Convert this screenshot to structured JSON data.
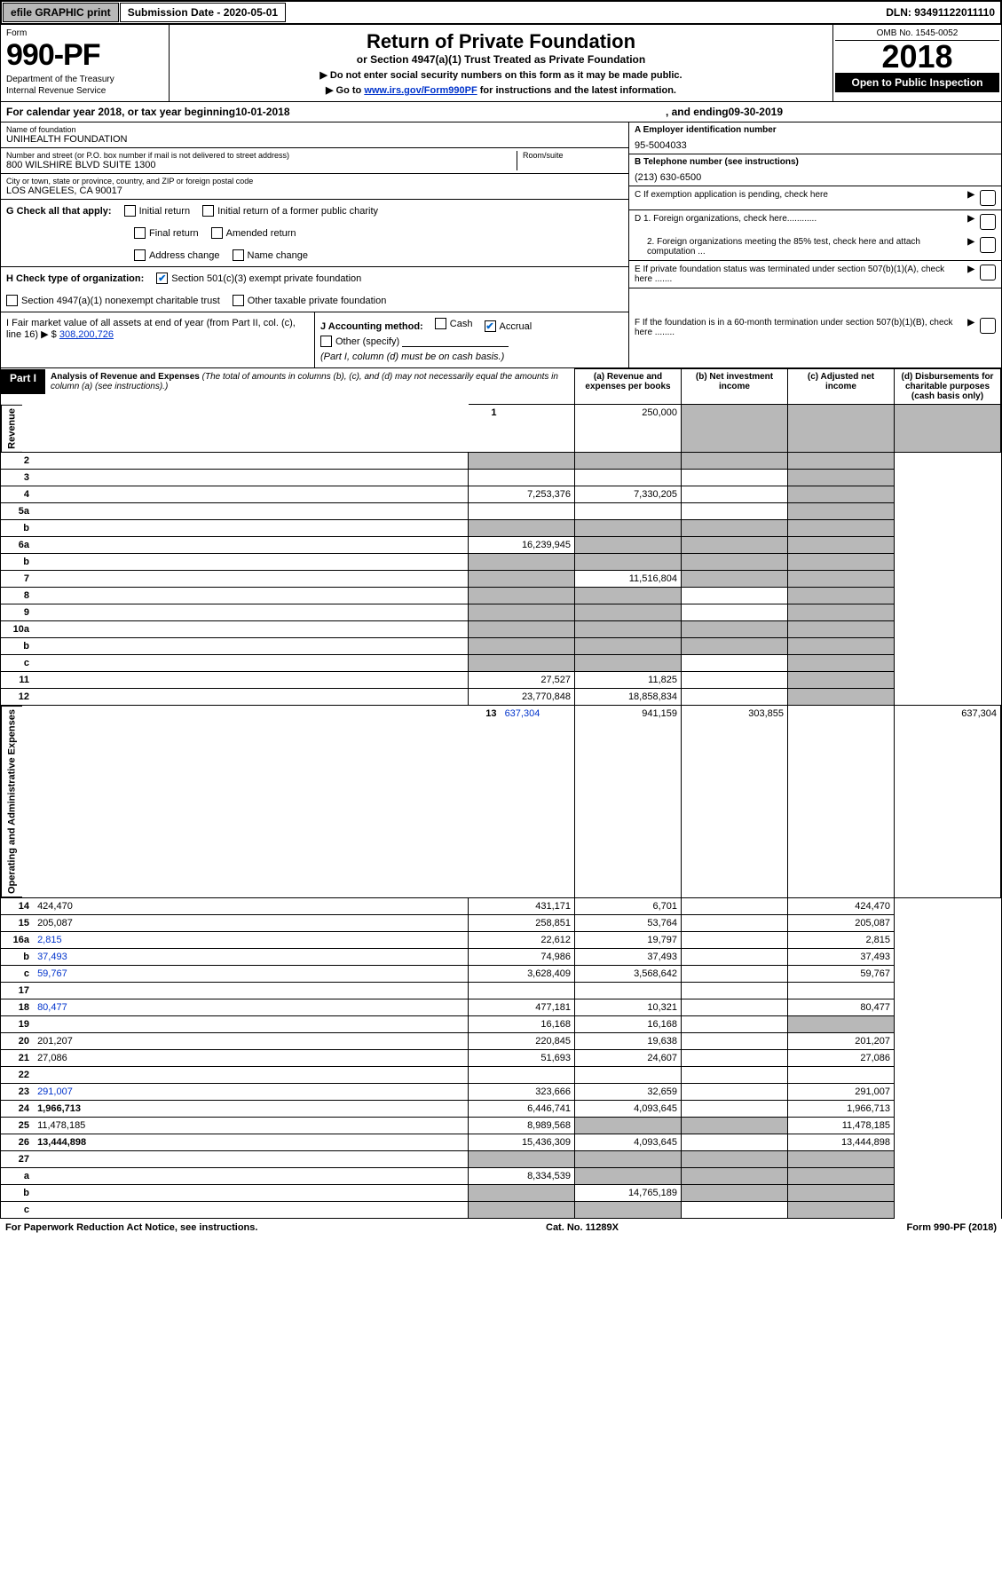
{
  "top_bar": {
    "efile": "efile GRAPHIC print",
    "submission_label": "Submission Date - 2020-05-01",
    "dln": "DLN: 93491122011110"
  },
  "header": {
    "form_word": "Form",
    "form_no": "990-PF",
    "dept": "Department of the Treasury",
    "irs": "Internal Revenue Service",
    "title": "Return of Private Foundation",
    "subtitle": "or Section 4947(a)(1) Trust Treated as Private Foundation",
    "note1": "▶ Do not enter social security numbers on this form as it may be made public.",
    "note2_pre": "▶ Go to ",
    "note2_link": "www.irs.gov/Form990PF",
    "note2_post": " for instructions and the latest information.",
    "omb": "OMB No. 1545-0052",
    "year": "2018",
    "open_pub": "Open to Public Inspection"
  },
  "cal": {
    "text_pre": "For calendar year 2018, or tax year beginning ",
    "begin": "10-01-2018",
    "mid": " , and ending ",
    "end": "09-30-2019"
  },
  "name_block": {
    "label": "Name of foundation",
    "value": "UNIHEALTH FOUNDATION",
    "addr_label": "Number and street (or P.O. box number if mail is not delivered to street address)",
    "room_label": "Room/suite",
    "addr": "800 WILSHIRE BLVD SUITE 1300",
    "city_label": "City or town, state or province, country, and ZIP or foreign postal code",
    "city": "LOS ANGELES, CA  90017"
  },
  "right_block": {
    "a_label": "A Employer identification number",
    "a_val": "95-5004033",
    "b_label": "B Telephone number (see instructions)",
    "b_val": "(213) 630-6500",
    "c_label": "C If exemption application is pending, check here",
    "d1": "D 1. Foreign organizations, check here............",
    "d2": "2. Foreign organizations meeting the 85% test, check here and attach computation ...",
    "e": "E  If private foundation status was terminated under section 507(b)(1)(A), check here .......",
    "f": "F  If the foundation is in a 60-month termination under section 507(b)(1)(B), check here ........"
  },
  "g": {
    "label": "G Check all that apply:",
    "opts": [
      "Initial return",
      "Initial return of a former public charity",
      "Final return",
      "Amended return",
      "Address change",
      "Name change"
    ]
  },
  "h": {
    "label": "H Check type of organization:",
    "opt1": "Section 501(c)(3) exempt private foundation",
    "opt2": "Section 4947(a)(1) nonexempt charitable trust",
    "opt3": "Other taxable private foundation"
  },
  "i": {
    "label": "I Fair market value of all assets at end of year (from Part II, col. (c), line 16) ▶ $",
    "value": "308,200,726"
  },
  "j": {
    "label": "J Accounting method:",
    "cash": "Cash",
    "accrual": "Accrual",
    "other": "Other (specify)",
    "note": "(Part I, column (d) must be on cash basis.)"
  },
  "part1": {
    "label": "Part I",
    "title": "Analysis of Revenue and Expenses",
    "title_note": "(The total of amounts in columns (b), (c), and (d) may not necessarily equal the amounts in column (a) (see instructions).)",
    "col_a": "(a) Revenue and expenses per books",
    "col_b": "(b) Net investment income",
    "col_c": "(c) Adjusted net income",
    "col_d": "(d) Disbursements for charitable purposes (cash basis only)"
  },
  "sections": {
    "revenue": "Revenue",
    "opex": "Operating and Administrative Expenses"
  },
  "rows": [
    {
      "n": "1",
      "d": "",
      "a": "250,000",
      "b": "",
      "c": "",
      "shade": [
        "b",
        "c",
        "d"
      ]
    },
    {
      "n": "2",
      "d": "",
      "a": "",
      "b": "",
      "c": "",
      "shade": [
        "a",
        "b",
        "c",
        "d"
      ],
      "link": true
    },
    {
      "n": "3",
      "d": "",
      "a": "",
      "b": "",
      "c": "",
      "shade": [
        "d"
      ],
      "link": true
    },
    {
      "n": "4",
      "d": "",
      "a": "7,253,376",
      "b": "7,330,205",
      "c": "",
      "shade": [
        "d"
      ],
      "link": true
    },
    {
      "n": "5a",
      "d": "",
      "a": "",
      "b": "",
      "c": "",
      "shade": [
        "d"
      ]
    },
    {
      "n": "b",
      "d": "",
      "a": "",
      "b": "",
      "c": "",
      "shade": [
        "a",
        "b",
        "c",
        "d"
      ]
    },
    {
      "n": "6a",
      "d": "",
      "a": "16,239,945",
      "b": "",
      "c": "",
      "shade": [
        "b",
        "c",
        "d"
      ],
      "link": true
    },
    {
      "n": "b",
      "d": "",
      "a": "",
      "b": "",
      "c": "",
      "shade": [
        "a",
        "b",
        "c",
        "d"
      ]
    },
    {
      "n": "7",
      "d": "",
      "a": "",
      "b": "11,516,804",
      "c": "",
      "shade": [
        "a",
        "c",
        "d"
      ],
      "link": true
    },
    {
      "n": "8",
      "d": "",
      "a": "",
      "b": "",
      "c": "",
      "shade": [
        "a",
        "b",
        "d"
      ]
    },
    {
      "n": "9",
      "d": "",
      "a": "",
      "b": "",
      "c": "",
      "shade": [
        "a",
        "b",
        "d"
      ]
    },
    {
      "n": "10a",
      "d": "",
      "a": "",
      "b": "",
      "c": "",
      "shade": [
        "a",
        "b",
        "c",
        "d"
      ]
    },
    {
      "n": "b",
      "d": "",
      "a": "",
      "b": "",
      "c": "",
      "shade": [
        "a",
        "b",
        "c",
        "d"
      ]
    },
    {
      "n": "c",
      "d": "",
      "a": "",
      "b": "",
      "c": "",
      "shade": [
        "a",
        "b",
        "d"
      ]
    },
    {
      "n": "11",
      "d": "",
      "a": "27,527",
      "b": "11,825",
      "c": "",
      "shade": [
        "d"
      ],
      "link": true
    },
    {
      "n": "12",
      "d": "",
      "a": "23,770,848",
      "b": "18,858,834",
      "c": "",
      "shade": [
        "d"
      ],
      "bold": true
    },
    {
      "n": "13",
      "d": "637,304",
      "a": "941,159",
      "b": "303,855",
      "c": "",
      "link": true
    },
    {
      "n": "14",
      "d": "424,470",
      "a": "431,171",
      "b": "6,701",
      "c": ""
    },
    {
      "n": "15",
      "d": "205,087",
      "a": "258,851",
      "b": "53,764",
      "c": ""
    },
    {
      "n": "16a",
      "d": "2,815",
      "a": "22,612",
      "b": "19,797",
      "c": "",
      "link": true
    },
    {
      "n": "b",
      "d": "37,493",
      "a": "74,986",
      "b": "37,493",
      "c": "",
      "link": true
    },
    {
      "n": "c",
      "d": "59,767",
      "a": "3,628,409",
      "b": "3,568,642",
      "c": "",
      "link": true
    },
    {
      "n": "17",
      "d": "",
      "a": "",
      "b": "",
      "c": ""
    },
    {
      "n": "18",
      "d": "80,477",
      "a": "477,181",
      "b": "10,321",
      "c": "",
      "link": true
    },
    {
      "n": "19",
      "d": "",
      "a": "16,168",
      "b": "16,168",
      "c": "",
      "shade": [
        "d"
      ],
      "link": true
    },
    {
      "n": "20",
      "d": "201,207",
      "a": "220,845",
      "b": "19,638",
      "c": ""
    },
    {
      "n": "21",
      "d": "27,086",
      "a": "51,693",
      "b": "24,607",
      "c": ""
    },
    {
      "n": "22",
      "d": "",
      "a": "",
      "b": "",
      "c": ""
    },
    {
      "n": "23",
      "d": "291,007",
      "a": "323,666",
      "b": "32,659",
      "c": "",
      "link": true
    },
    {
      "n": "24",
      "d": "1,966,713",
      "a": "6,446,741",
      "b": "4,093,645",
      "c": "",
      "bold": true
    },
    {
      "n": "25",
      "d": "11,478,185",
      "a": "8,989,568",
      "b": "",
      "c": "",
      "shade": [
        "b",
        "c"
      ]
    },
    {
      "n": "26",
      "d": "13,444,898",
      "a": "15,436,309",
      "b": "4,093,645",
      "c": "",
      "bold": true
    },
    {
      "n": "27",
      "d": "",
      "a": "",
      "b": "",
      "c": "",
      "shade": [
        "a",
        "b",
        "c",
        "d"
      ]
    },
    {
      "n": "a",
      "d": "",
      "a": "8,334,539",
      "b": "",
      "c": "",
      "shade": [
        "b",
        "c",
        "d"
      ],
      "bold": true
    },
    {
      "n": "b",
      "d": "",
      "a": "",
      "b": "14,765,189",
      "c": "",
      "shade": [
        "a",
        "c",
        "d"
      ],
      "bold": true
    },
    {
      "n": "c",
      "d": "",
      "a": "",
      "b": "",
      "c": "",
      "shade": [
        "a",
        "b",
        "d"
      ],
      "bold": true
    }
  ],
  "footer": {
    "left": "For Paperwork Reduction Act Notice, see instructions.",
    "mid": "Cat. No. 11289X",
    "right": "Form 990-PF (2018)"
  },
  "colors": {
    "shade": "#b8b8b8",
    "link": "#0033cc",
    "black": "#000000",
    "check": "#0066cc"
  }
}
